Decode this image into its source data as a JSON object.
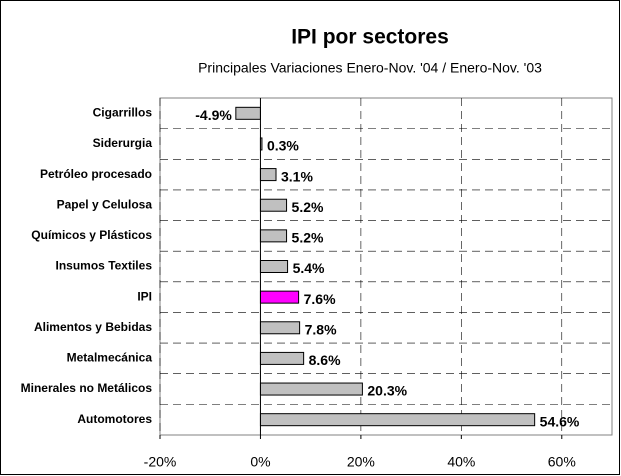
{
  "chart_data": {
    "type": "barh",
    "title": "IPI por sectores",
    "subtitle": "Principales Variaciones Enero-Nov. '04 / Enero-Nov. '03",
    "categories": [
      "Cigarrillos",
      "Siderurgia",
      "Petróleo procesado",
      "Papel y Celulosa",
      "Químicos y Plásticos",
      "Insumos Textiles",
      "IPI",
      "Alimentos y Bebidas",
      "Metalmecánica",
      "Minerales no Metálicos",
      "Automotores"
    ],
    "values": [
      -4.9,
      0.3,
      3.1,
      5.2,
      5.2,
      5.4,
      7.6,
      7.8,
      8.6,
      20.3,
      54.6
    ],
    "value_labels": [
      "-4.9%",
      "0.3%",
      "3.1%",
      "5.2%",
      "5.2%",
      "5.4%",
      "7.6%",
      "7.8%",
      "8.6%",
      "20.3%",
      "54.6%"
    ],
    "colors": [
      "#c0c0c0",
      "#c0c0c0",
      "#c0c0c0",
      "#c0c0c0",
      "#c0c0c0",
      "#c0c0c0",
      "#ff00ff",
      "#c0c0c0",
      "#c0c0c0",
      "#c0c0c0",
      "#c0c0c0"
    ],
    "xlim": [
      -20,
      70
    ],
    "xticks": [
      {
        "value": -20,
        "label": "-20%"
      },
      {
        "value": 0,
        "label": "0%"
      },
      {
        "value": 20,
        "label": "20%"
      },
      {
        "value": 40,
        "label": "40%"
      },
      {
        "value": 60,
        "label": "60%"
      }
    ],
    "grid": true
  }
}
